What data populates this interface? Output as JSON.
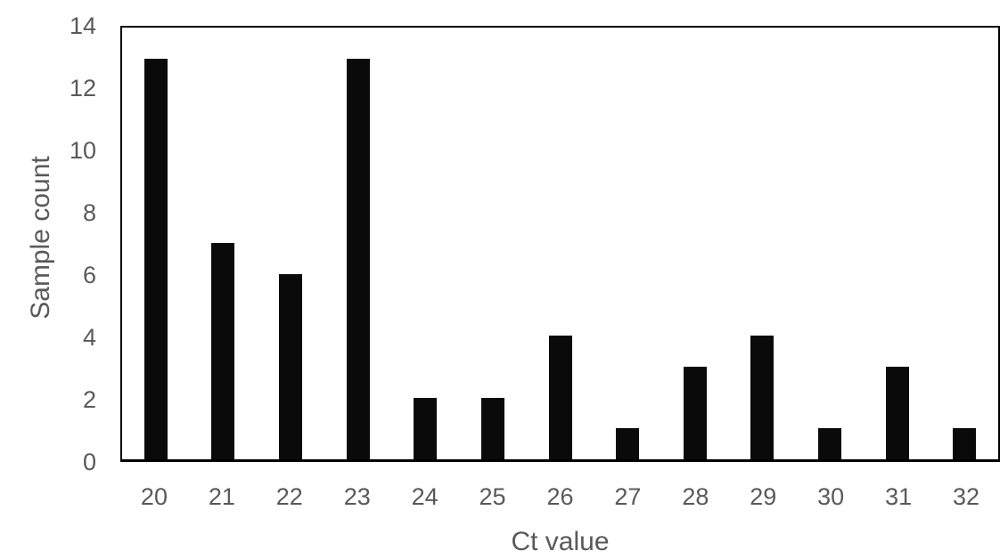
{
  "chart_data": {
    "type": "bar",
    "title": "",
    "xlabel": "Ct value",
    "ylabel": "Sample count",
    "categories": [
      "20",
      "21",
      "22",
      "23",
      "24",
      "25",
      "26",
      "27",
      "28",
      "29",
      "30",
      "31",
      "32"
    ],
    "values": [
      13,
      7,
      6,
      13,
      2,
      2,
      4,
      1,
      3,
      4,
      1,
      3,
      1
    ],
    "ylim": [
      0,
      14
    ],
    "ytick_step": 2,
    "yticks": [
      0,
      2,
      4,
      6,
      8,
      10,
      12,
      14
    ],
    "grid": false,
    "legend_position": "none",
    "bar_color": "#0a0a0a",
    "text_color": "#595959",
    "axis_color": "#000000"
  }
}
